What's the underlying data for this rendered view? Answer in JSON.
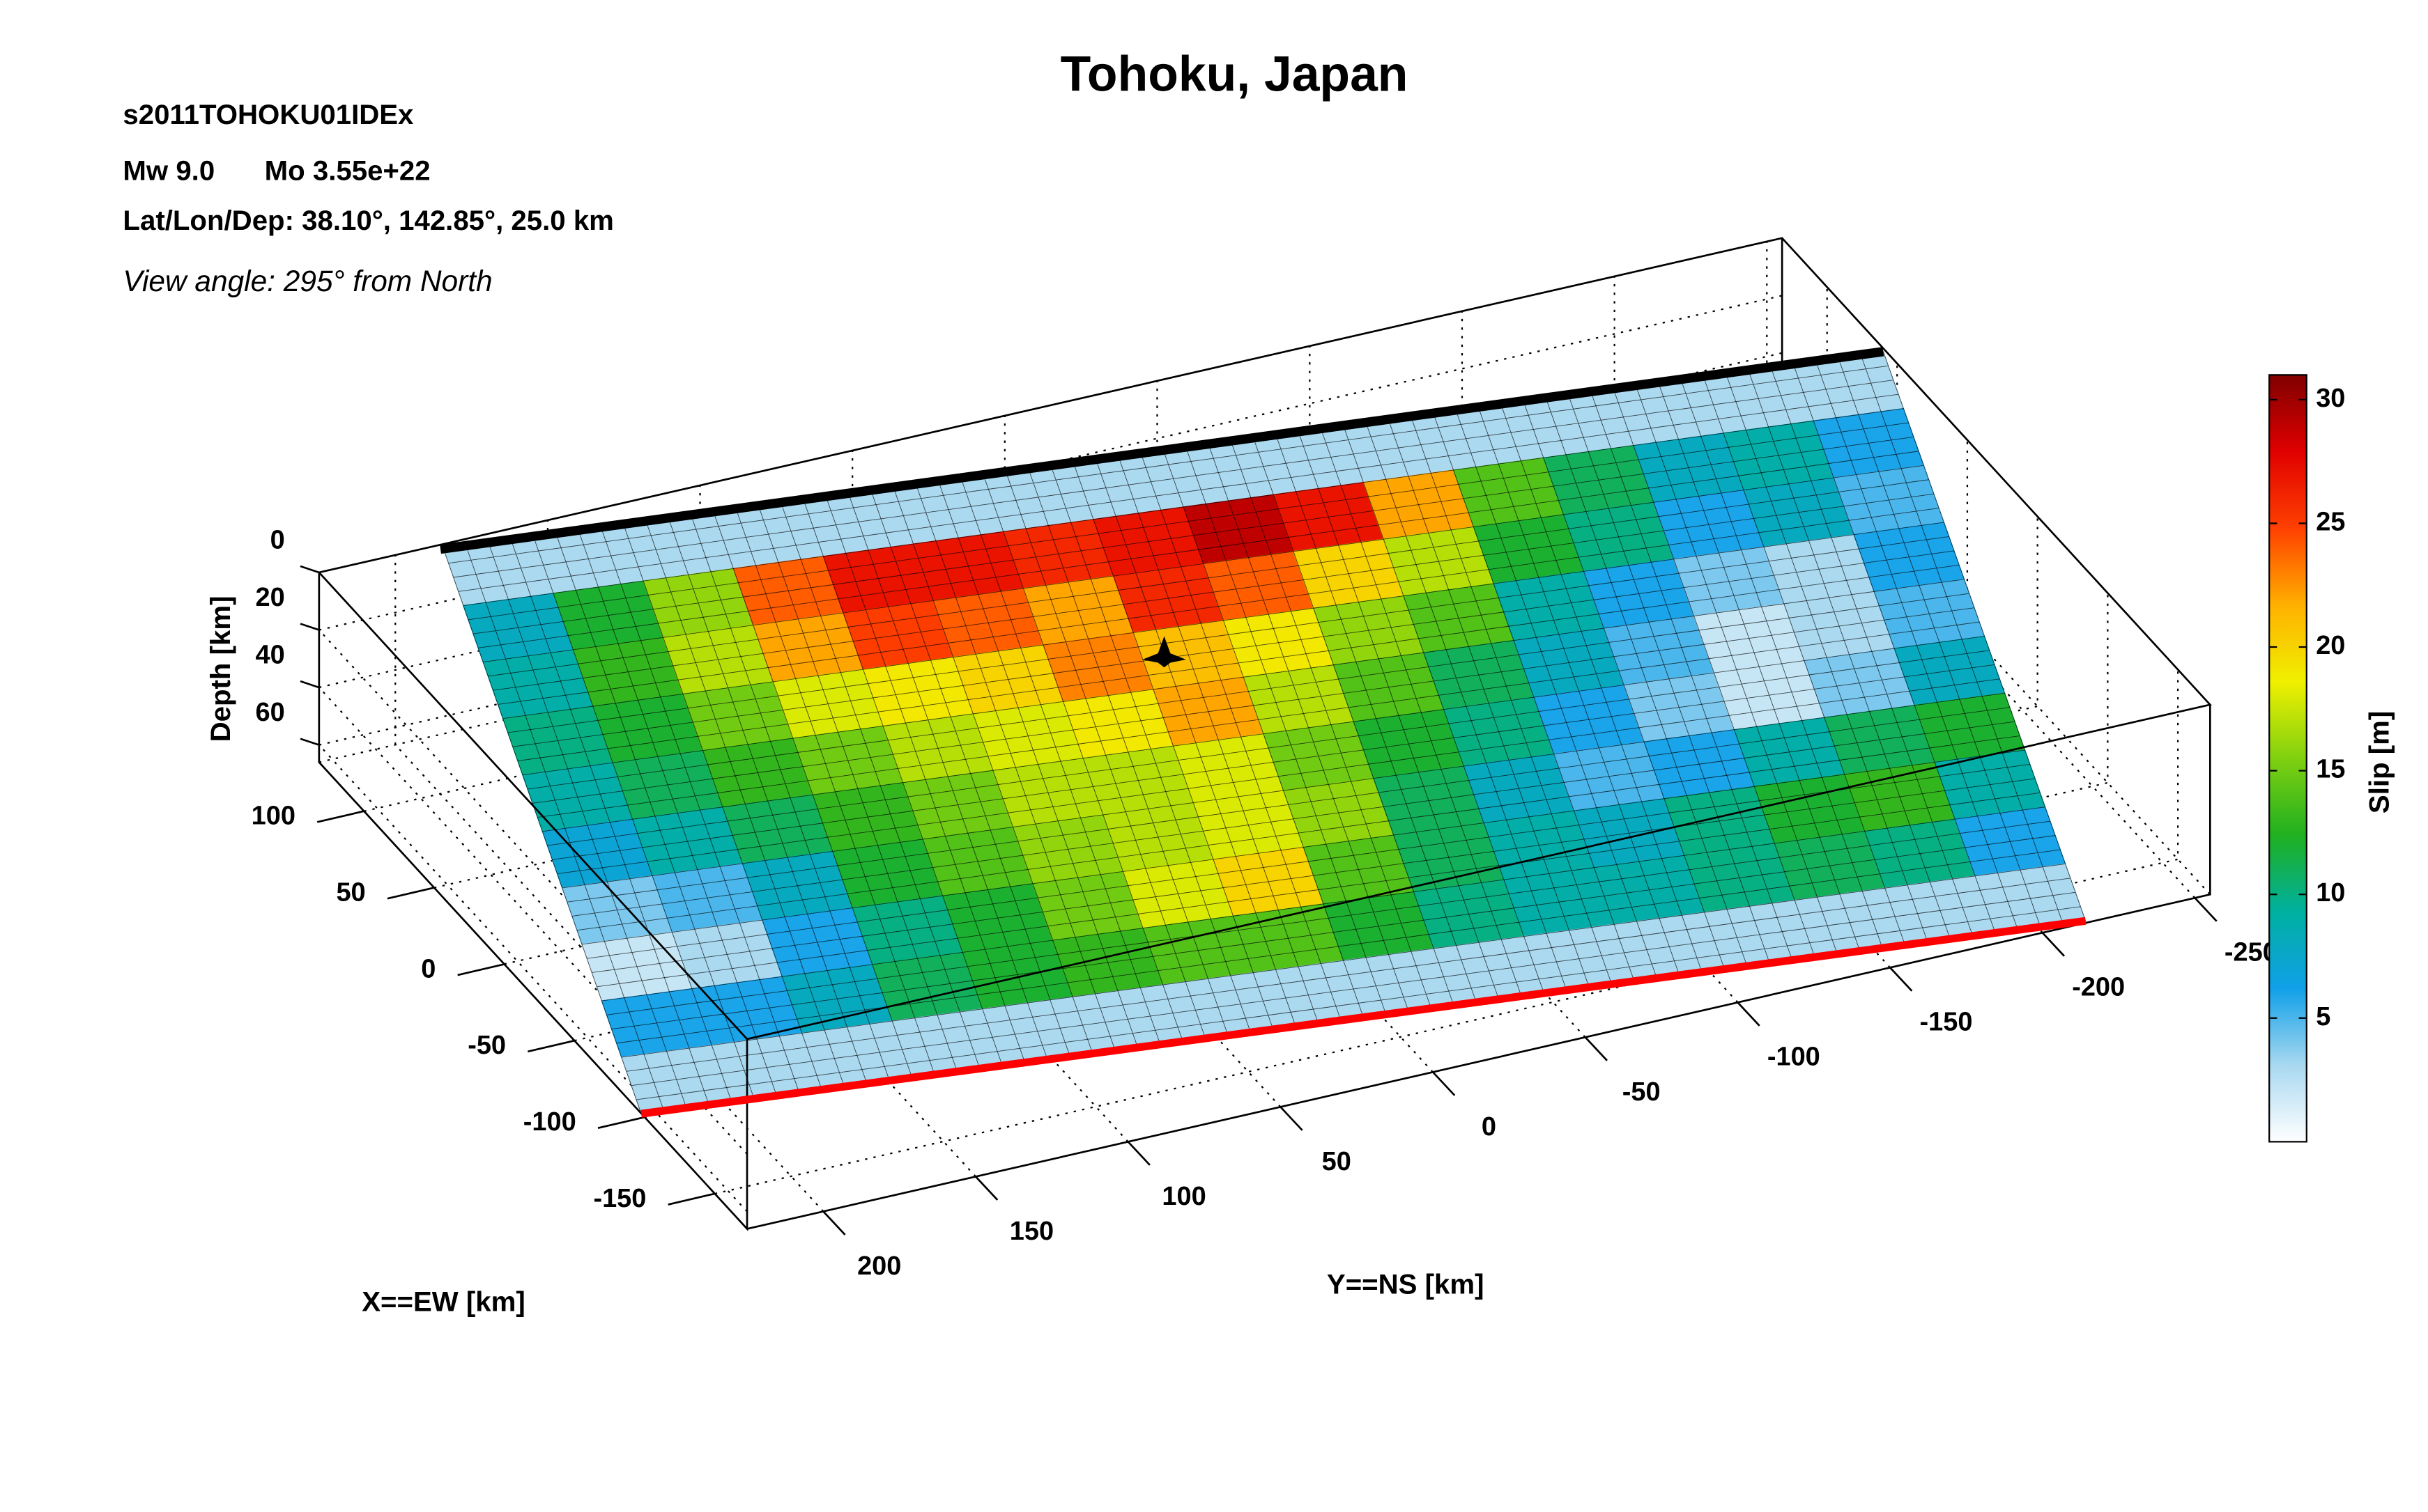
{
  "chart_data": {
    "type": "slip_surface",
    "title": "Tohoku, Japan",
    "event_id": "s2011TOHOKU01IDEx",
    "magnitude": "Mw 9.0",
    "moment": "Mo 3.55e+22",
    "location": "Lat/Lon/Dep: 38.10°, 142.85°, 25.0 km",
    "view_angle": "View angle: 295° from North",
    "xlabel": "X==EW [km]",
    "ylabel": "Y==NS [km]",
    "zlabel": "Depth [km]",
    "colorbar_label": "Slip [m]",
    "xlim": [
      132,
      -173
    ],
    "xticks": [
      100,
      50,
      0,
      -50,
      -100,
      -150
    ],
    "ylim": [
      225,
      -255
    ],
    "yticks": [
      200,
      150,
      100,
      50,
      0,
      -50,
      -100,
      -150,
      -200,
      -250
    ],
    "zlim": [
      0,
      66
    ],
    "zticks": [
      0,
      20,
      40,
      60
    ],
    "clim": [
      0,
      31
    ],
    "cticks": [
      5,
      10,
      15,
      20,
      25,
      30
    ],
    "colormap": [
      "#ffffff",
      "#a8d8f0",
      "#10a0e8",
      "#00b0a0",
      "#20b020",
      "#80d010",
      "#f0f000",
      "#ffb000",
      "#ff4000",
      "#e00000",
      "#800000"
    ],
    "slip": [
      [
        3,
        3,
        3,
        3,
        3,
        3,
        3,
        3,
        3,
        3,
        3,
        3,
        3,
        3,
        3,
        3
      ],
      [
        8,
        12,
        16,
        24,
        27,
        27,
        26,
        27,
        29,
        27,
        22,
        14,
        11,
        8,
        9,
        6
      ],
      [
        9,
        13,
        17,
        22,
        25,
        24,
        22,
        26,
        24,
        20,
        17,
        12,
        10,
        6,
        8,
        5
      ],
      [
        10,
        12,
        15,
        18,
        19,
        20,
        23,
        21,
        19,
        16,
        14,
        9,
        6,
        4,
        3,
        6
      ],
      [
        9,
        11,
        13,
        15,
        17,
        18,
        19,
        22,
        17,
        14,
        11,
        8,
        5,
        2,
        3,
        5
      ],
      [
        7,
        9,
        11,
        13,
        15,
        17,
        17,
        18,
        15,
        12,
        10,
        6,
        4,
        2,
        4,
        8
      ],
      [
        4,
        5,
        8,
        12,
        14,
        16,
        17,
        18,
        16,
        11,
        8,
        5,
        6,
        9,
        11,
        12
      ],
      [
        2,
        3,
        6,
        10,
        12,
        15,
        18,
        20,
        14,
        11,
        9,
        8,
        10,
        12,
        13,
        9
      ],
      [
        6,
        6,
        8,
        11,
        12,
        13,
        14,
        14,
        12,
        10,
        9,
        9,
        10,
        11,
        10,
        6
      ],
      [
        3,
        3,
        3,
        3,
        3,
        3,
        3,
        3,
        3,
        3,
        3,
        3,
        3,
        3,
        3,
        3
      ]
    ]
  }
}
